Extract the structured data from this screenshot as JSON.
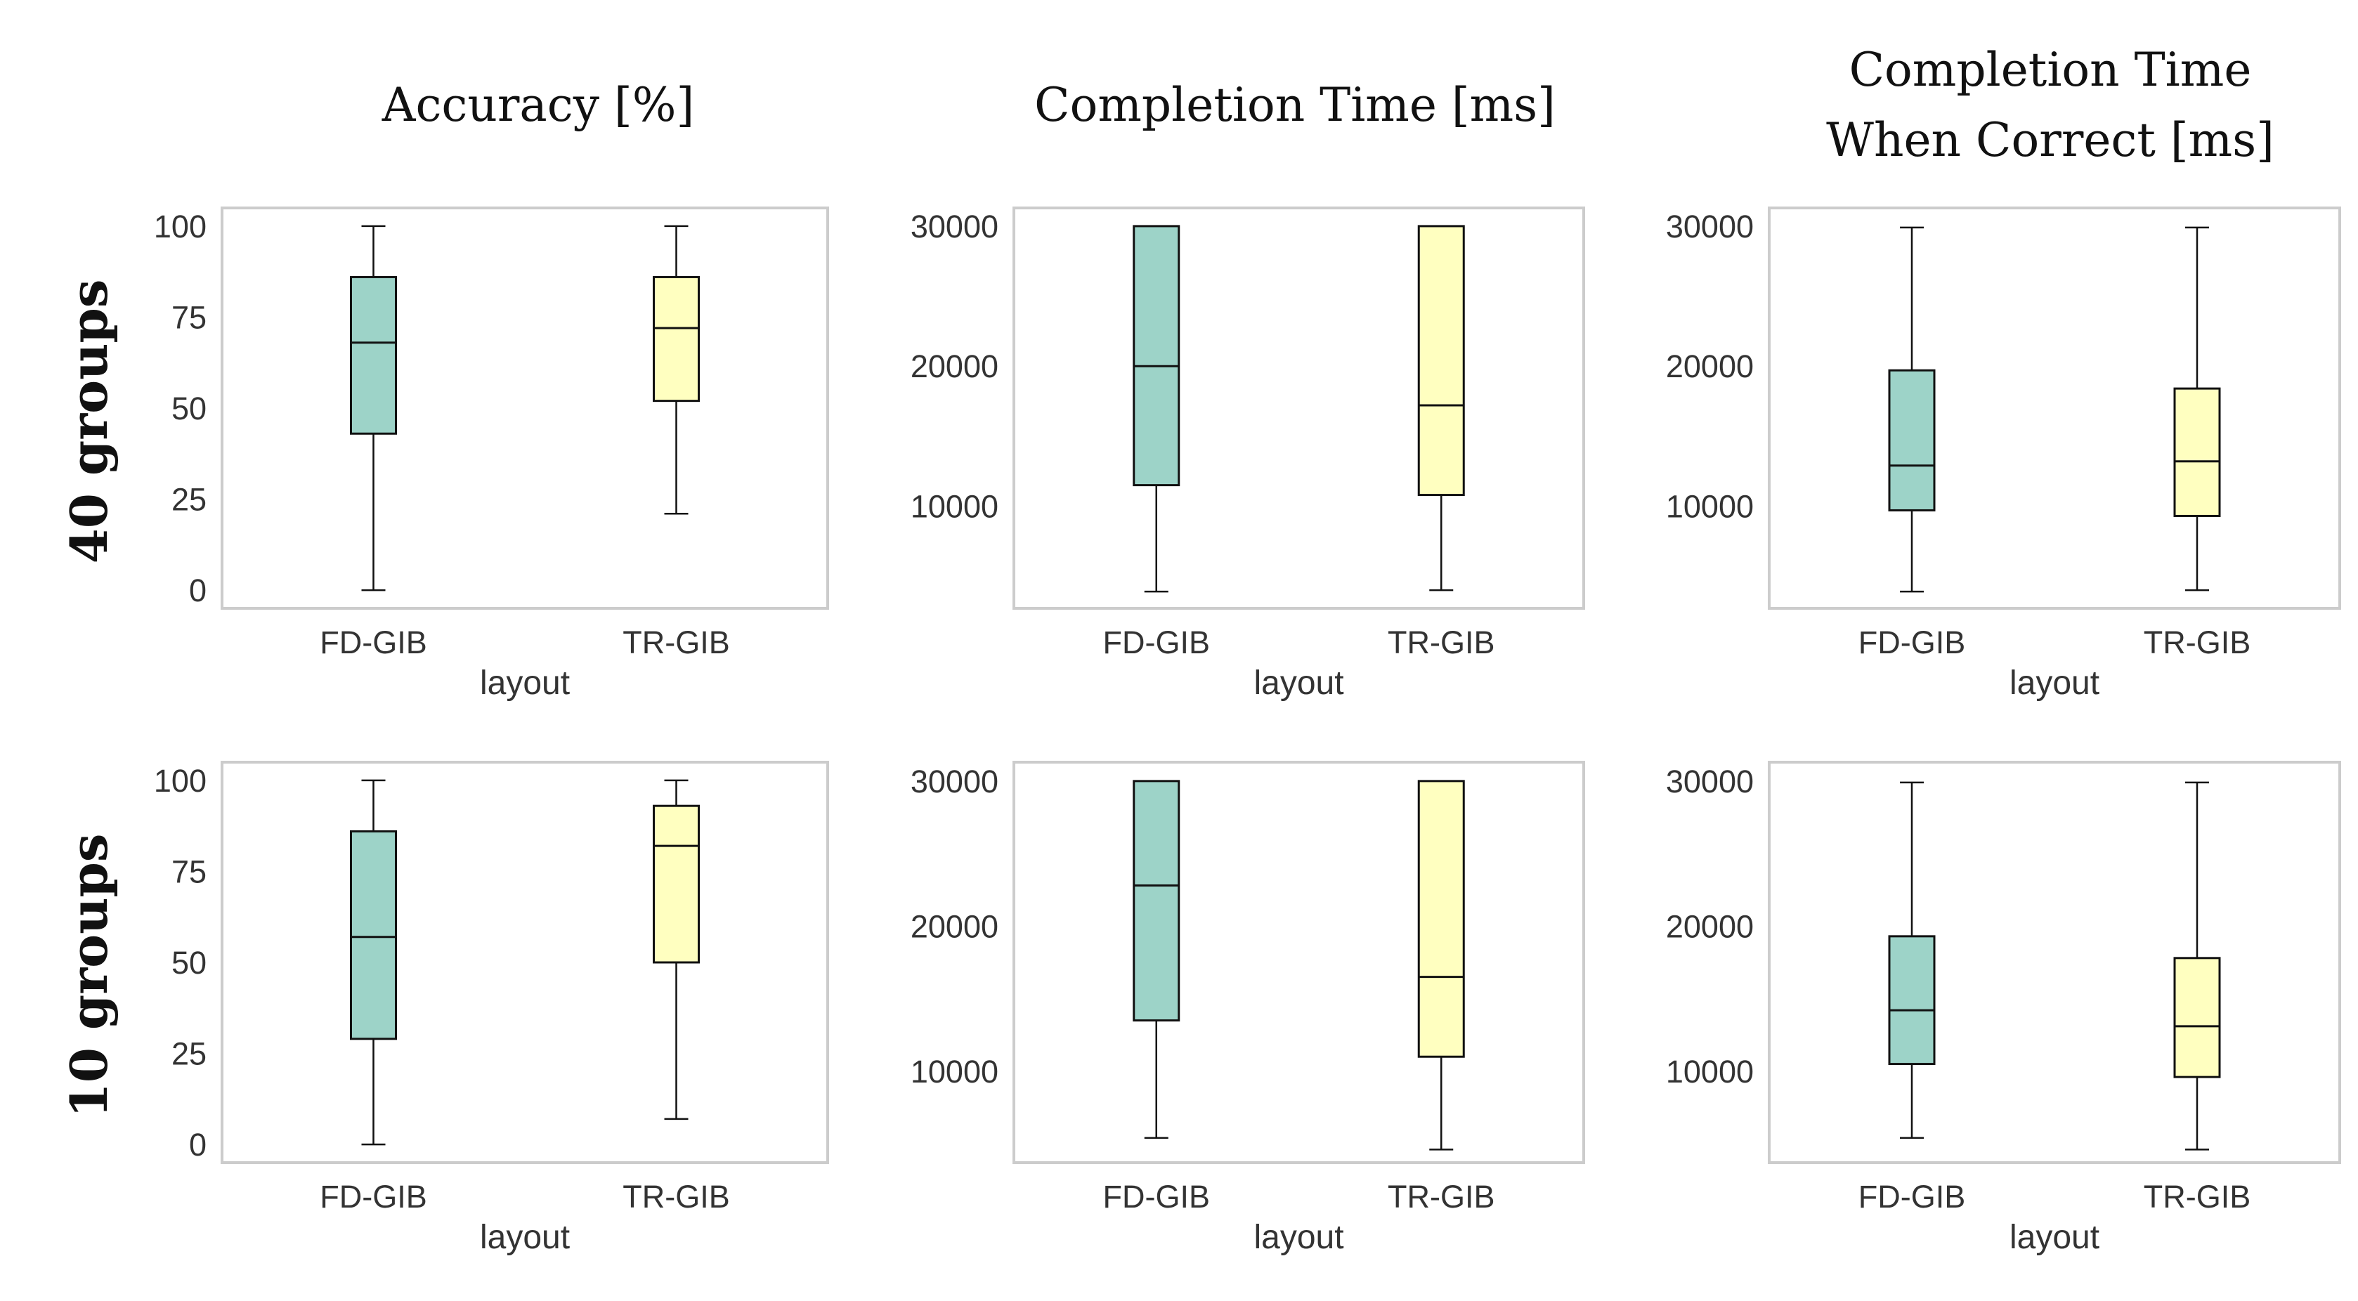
{
  "figure": {
    "column_titles": [
      [
        "Accuracy [%]"
      ],
      [
        "Completion Time [ms]"
      ],
      [
        "Completion Time",
        "When Correct [ms]"
      ]
    ],
    "row_titles": [
      "40 groups",
      "10 groups"
    ],
    "colors": {
      "FD-GIB": "#9dd3c8",
      "TR-GIB": "#ffffc0"
    }
  },
  "chart_data": [
    {
      "type": "box",
      "row_label": "40 groups",
      "title": "Accuracy [%]",
      "xlabel": "layout",
      "categories": [
        "FD-GIB",
        "TR-GIB"
      ],
      "yticks": [
        0,
        25,
        50,
        75,
        100
      ],
      "ylim": [
        -5,
        105
      ],
      "boxes": [
        {
          "name": "FD-GIB",
          "whislo": 0,
          "q1": 43,
          "med": 68,
          "q3": 86,
          "whishi": 100
        },
        {
          "name": "TR-GIB",
          "whislo": 21,
          "q1": 52,
          "med": 72,
          "q3": 86,
          "whishi": 100
        }
      ]
    },
    {
      "type": "box",
      "row_label": "40 groups",
      "title": "Completion Time [ms]",
      "xlabel": "layout",
      "categories": [
        "FD-GIB",
        "TR-GIB"
      ],
      "yticks": [
        10000,
        20000,
        30000
      ],
      "ylim": [
        2700,
        31300
      ],
      "boxes": [
        {
          "name": "FD-GIB",
          "whislo": 3900,
          "q1": 11500,
          "med": 20000,
          "q3": 30000,
          "whishi": 30000
        },
        {
          "name": "TR-GIB",
          "whislo": 4000,
          "q1": 10800,
          "med": 17200,
          "q3": 30000,
          "whishi": 30000
        }
      ]
    },
    {
      "type": "box",
      "row_label": "40 groups",
      "title": "Completion Time When Correct [ms]",
      "xlabel": "layout",
      "categories": [
        "FD-GIB",
        "TR-GIB"
      ],
      "yticks": [
        10000,
        20000,
        30000
      ],
      "ylim": [
        2700,
        31300
      ],
      "boxes": [
        {
          "name": "FD-GIB",
          "whislo": 3900,
          "q1": 9700,
          "med": 12900,
          "q3": 19700,
          "whishi": 29900
        },
        {
          "name": "TR-GIB",
          "whislo": 4000,
          "q1": 9300,
          "med": 13200,
          "q3": 18400,
          "whishi": 29900
        }
      ]
    },
    {
      "type": "box",
      "row_label": "10 groups",
      "title": "Accuracy [%]",
      "xlabel": "layout",
      "categories": [
        "FD-GIB",
        "TR-GIB"
      ],
      "yticks": [
        0,
        25,
        50,
        75,
        100
      ],
      "ylim": [
        -5,
        105
      ],
      "boxes": [
        {
          "name": "FD-GIB",
          "whislo": 0,
          "q1": 29,
          "med": 57,
          "q3": 86,
          "whishi": 100
        },
        {
          "name": "TR-GIB",
          "whislo": 7,
          "q1": 50,
          "med": 82,
          "q3": 93,
          "whishi": 100
        }
      ]
    },
    {
      "type": "box",
      "row_label": "10 groups",
      "title": "Completion Time [ms]",
      "xlabel": "layout",
      "categories": [
        "FD-GIB",
        "TR-GIB"
      ],
      "yticks": [
        10000,
        20000,
        30000
      ],
      "ylim": [
        3700,
        31300
      ],
      "boxes": [
        {
          "name": "FD-GIB",
          "whislo": 5400,
          "q1": 13500,
          "med": 22800,
          "q3": 30000,
          "whishi": 30000
        },
        {
          "name": "TR-GIB",
          "whislo": 4600,
          "q1": 11000,
          "med": 16500,
          "q3": 30000,
          "whishi": 30000
        }
      ]
    },
    {
      "type": "box",
      "row_label": "10 groups",
      "title": "Completion Time When Correct [ms]",
      "xlabel": "layout",
      "categories": [
        "FD-GIB",
        "TR-GIB"
      ],
      "yticks": [
        10000,
        20000,
        30000
      ],
      "ylim": [
        3700,
        31300
      ],
      "boxes": [
        {
          "name": "FD-GIB",
          "whislo": 5400,
          "q1": 10500,
          "med": 14200,
          "q3": 19300,
          "whishi": 29900
        },
        {
          "name": "TR-GIB",
          "whislo": 4600,
          "q1": 9600,
          "med": 13100,
          "q3": 17800,
          "whishi": 29900
        }
      ]
    }
  ]
}
